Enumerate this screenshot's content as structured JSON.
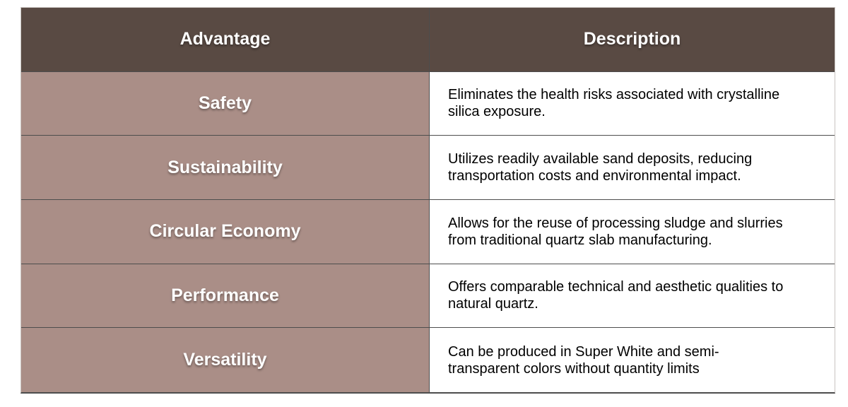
{
  "table": {
    "header": {
      "advantage": "Advantage",
      "description": "Description"
    },
    "rows": [
      {
        "advantage": "Safety",
        "description": "Eliminates the health risks associated with crystalline silica exposure."
      },
      {
        "advantage": "Sustainability",
        "description": "Utilizes readily available sand deposits, reducing transportation costs and environmental impact."
      },
      {
        "advantage": "Circular Economy",
        "description": "Allows for the reuse of processing sludge and slurries from traditional quartz slab manufacturing."
      },
      {
        "advantage": "Performance",
        "description": "Offers comparable technical and aesthetic qualities to natural quartz."
      },
      {
        "advantage": "Versatility",
        "description": "Can be produced in Super White and semi-transparent colors without quantity limits"
      }
    ],
    "colors": {
      "header_bg": "#594a43",
      "label_bg": "#aa8e87",
      "header_text": "#ffffff",
      "label_text": "#ffffff",
      "body_text": "#000000",
      "grid_line": "#4d4d4d",
      "outer_border": "#c9c4c1"
    }
  }
}
